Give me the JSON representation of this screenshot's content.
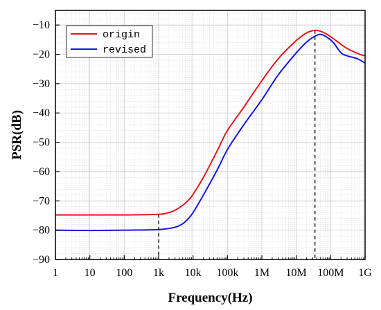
{
  "chart_data": {
    "type": "line",
    "xlabel": "Frequency(Hz)",
    "ylabel": "PSR(dB)",
    "x_scale": "log",
    "xlim": [
      1,
      1000000000
    ],
    "ylim": [
      -90,
      -5
    ],
    "x_ticks": [
      {
        "value": 1,
        "label": "1"
      },
      {
        "value": 10,
        "label": "10"
      },
      {
        "value": 100,
        "label": "100"
      },
      {
        "value": 1000,
        "label": "1k"
      },
      {
        "value": 10000,
        "label": "10k"
      },
      {
        "value": 100000,
        "label": "100k"
      },
      {
        "value": 1000000,
        "label": "1M"
      },
      {
        "value": 10000000,
        "label": "10M"
      },
      {
        "value": 100000000,
        "label": "100M"
      },
      {
        "value": 1000000000,
        "label": "1G"
      }
    ],
    "y_ticks": [
      -90,
      -80,
      -70,
      -60,
      -50,
      -40,
      -30,
      -20,
      -10
    ],
    "grid": true,
    "legend_position": "top-left",
    "series": [
      {
        "name": "origin",
        "color": "#e8141c",
        "x": [
          1,
          10,
          100,
          1000,
          2000,
          3000,
          5000,
          7000,
          10000,
          20000,
          50000,
          100000,
          300000,
          1000000,
          3000000,
          10000000,
          20000000,
          35000000,
          50000000,
          80000000,
          150000000,
          300000000,
          700000000,
          1000000000
        ],
        "y": [
          -74.8,
          -74.8,
          -74.8,
          -74.6,
          -74.0,
          -73.2,
          -71.5,
          -70.0,
          -67.8,
          -62.0,
          -53.0,
          -46.0,
          -38.0,
          -29.0,
          -21.5,
          -15.3,
          -12.7,
          -11.8,
          -12.1,
          -13.2,
          -15.5,
          -18.0,
          -20.0,
          -20.5
        ]
      },
      {
        "name": "revised",
        "color": "#1414e8",
        "x": [
          1,
          10,
          100,
          1000,
          3000,
          5000,
          7000,
          10000,
          20000,
          50000,
          100000,
          300000,
          1000000,
          3000000,
          10000000,
          20000000,
          35000000,
          50000000,
          70000000,
          120000000,
          200000000,
          300000000,
          600000000,
          1000000000
        ],
        "y": [
          -80.0,
          -80.1,
          -80.0,
          -79.8,
          -79.0,
          -77.8,
          -76.3,
          -74.0,
          -68.0,
          -59.5,
          -52.5,
          -44.0,
          -35.5,
          -27.0,
          -19.5,
          -15.8,
          -13.8,
          -13.2,
          -13.8,
          -16.0,
          -19.5,
          -20.5,
          -21.5,
          -23.0
        ]
      }
    ],
    "annotations": [
      {
        "type": "vline",
        "x": 1000,
        "y_from": -90,
        "y_to": -74.6,
        "style": "dashed"
      },
      {
        "type": "vline",
        "x": 35000000,
        "y_from": -90,
        "y_to": -11.8,
        "style": "dashed"
      }
    ]
  }
}
